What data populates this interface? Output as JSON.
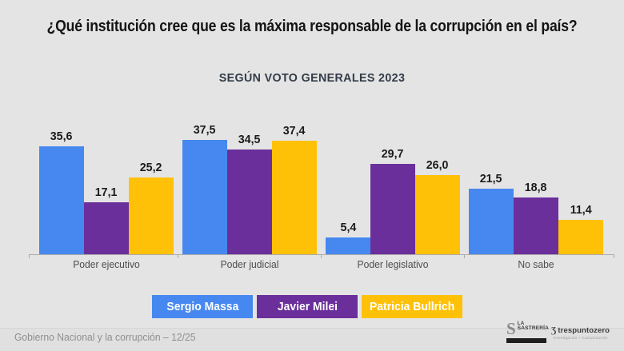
{
  "header": {
    "title": "¿Qué institución cree que es la máxima responsable de la corrupción en el país?",
    "subtitle": "SEGÚN VOTO GENERALES 2023"
  },
  "chart_data": {
    "type": "bar",
    "title": "¿Qué institución cree que es la máxima responsable de la corrupción en el país?",
    "subtitle": "SEGÚN VOTO GENERALES 2023",
    "categories": [
      "Poder ejecutivo",
      "Poder judicial",
      "Poder legislativo",
      "No sabe"
    ],
    "series": [
      {
        "name": "Sergio Massa",
        "color": "#4688F0",
        "values": [
          35.6,
          37.5,
          5.4,
          21.5
        ],
        "labels": [
          "35,6",
          "37,5",
          "5,4",
          "21,5"
        ]
      },
      {
        "name": "Javier Milei",
        "color": "#6B2F9B",
        "values": [
          17.1,
          34.5,
          29.7,
          18.8
        ],
        "labels": [
          "17,1",
          "34,5",
          "29,7",
          "18,8"
        ]
      },
      {
        "name": "Patricia Bullrich",
        "color": "#FFC107",
        "values": [
          25.2,
          37.4,
          26.0,
          11.4
        ],
        "labels": [
          "25,2",
          "37,4",
          "26,0",
          "11,4"
        ]
      }
    ],
    "xlabel": "",
    "ylabel": "",
    "ylim": [
      0,
      40
    ],
    "grid": false,
    "legend_position": "bottom",
    "value_labels_shown": true,
    "decimal_separator": ","
  },
  "colors": {
    "background": "#E4E4E4",
    "series_blue": "#4688F0",
    "series_purple": "#6B2F9B",
    "series_yellow": "#FFC107",
    "axis": "#ACACAC"
  },
  "footer": {
    "source_label": "Gobierno Nacional y la corrupción – 12/25",
    "logos": {
      "sastreria": {
        "glyph": "S",
        "line1": "LA",
        "line2": "SASTRERÍA"
      },
      "trespuntozero": {
        "glyph": "Ʒ",
        "name": "trespuntozero",
        "tagline": "Investigación + Comunicación"
      }
    }
  }
}
